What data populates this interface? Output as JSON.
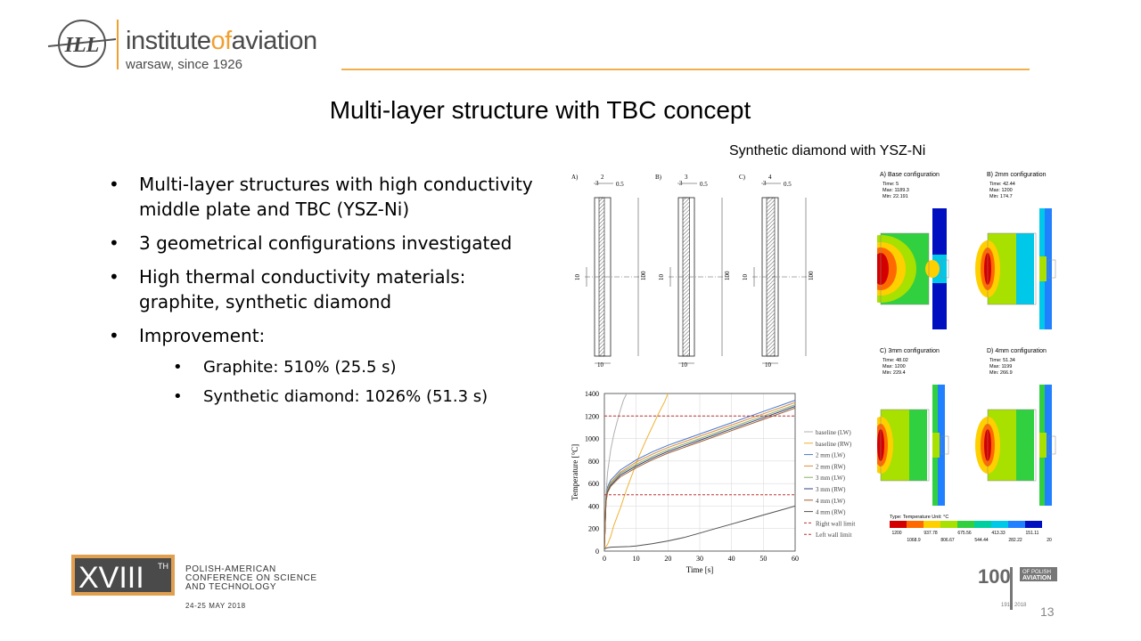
{
  "header": {
    "logo_initials": "ILL",
    "logo_name_a": "institute",
    "logo_name_b": "of",
    "logo_name_c": "aviation",
    "logo_sub": "warsaw, since 1926"
  },
  "title": "Multi-layer structure with TBC concept",
  "figure_caption": "Synthetic diamond with YSZ-Ni",
  "bullets": [
    {
      "text": "Multi-layer structures with high conductivity middle plate and TBC (YSZ-Ni)"
    },
    {
      "text": "3 geometrical configurations investigated"
    },
    {
      "text": "High thermal conductivity materials: graphite, synthetic diamond"
    },
    {
      "text": "Improvement:"
    }
  ],
  "sub_bullets": [
    {
      "text": "Graphite: 510% (25.5 s)"
    },
    {
      "text": "Synthetic diamond: 1026% (51.3 s)"
    }
  ],
  "drawings": {
    "panels": [
      {
        "label": "A)",
        "dim_top": "2",
        "dim_side": "3",
        "dim_thin": "0.5",
        "dim_h": "100",
        "dim_mid": "10",
        "dim_w": "10"
      },
      {
        "label": "B)",
        "dim_top": "3",
        "dim_side": "3",
        "dim_thin": "0.5",
        "dim_h": "100",
        "dim_mid": "10",
        "dim_w": "10"
      },
      {
        "label": "C)",
        "dim_top": "4",
        "dim_side": "3",
        "dim_thin": "0.5",
        "dim_h": "100",
        "dim_mid": "10",
        "dim_w": "10"
      }
    ]
  },
  "fem": {
    "panels": [
      {
        "title": "A) Base configuration",
        "time": "Time: 5",
        "max": "Max: 1189.3",
        "min": "Min: 22.191"
      },
      {
        "title": "B) 2mm configuration",
        "time": "Time: 42.44",
        "max": "Max: 1200",
        "min": "Min: 174.7"
      },
      {
        "title": "C) 3mm configuration",
        "time": "Time: 48.02",
        "max": "Max: 1200",
        "min": "Min: 229.4"
      },
      {
        "title": "D) 4mm configuration",
        "time": "Time: 51.34",
        "max": "Max: 1199",
        "min": "Min: 266.9"
      }
    ],
    "legend_title": "Type: Temperature   Unit: °C",
    "scale_top": [
      "1200",
      "937.78",
      "675.56",
      "413.33",
      "151.11"
    ],
    "scale_bottom": [
      "1068.9",
      "806.67",
      "544.44",
      "282.22",
      "20"
    ],
    "scale_colors": [
      "#d40000",
      "#ff6a00",
      "#ffd000",
      "#a8e000",
      "#30d040",
      "#00d0a0",
      "#00c8e8",
      "#2080ff",
      "#0010c0"
    ]
  },
  "chart_data": {
    "type": "line",
    "xlabel": "Time [s]",
    "ylabel": "Temperature [°C]",
    "xlim": [
      0,
      60
    ],
    "ylim": [
      0,
      1400
    ],
    "xticks": [
      0,
      10,
      20,
      30,
      40,
      50,
      60
    ],
    "yticks": [
      0,
      200,
      400,
      600,
      800,
      1000,
      1200,
      1400
    ],
    "grid": true,
    "legend_position": "right",
    "series": [
      {
        "name": "baseline (LW)",
        "color": "#b0b0b0",
        "dash": "",
        "x": [
          0,
          0.5,
          1,
          2,
          3,
          4,
          5,
          6,
          7
        ],
        "y": [
          20,
          500,
          700,
          900,
          1040,
          1150,
          1250,
          1340,
          1400
        ]
      },
      {
        "name": "baseline (RW)",
        "color": "#f0b030",
        "dash": "",
        "x": [
          0,
          1,
          2,
          3,
          5,
          7,
          9,
          11,
          13,
          15,
          17,
          19,
          20
        ],
        "y": [
          20,
          60,
          130,
          230,
          380,
          550,
          700,
          850,
          980,
          1100,
          1220,
          1330,
          1400
        ]
      },
      {
        "name": "2 mm (LW)",
        "color": "#4a78c8",
        "dash": "",
        "x": [
          0,
          0.5,
          1,
          2,
          3,
          5,
          10,
          15,
          20,
          30,
          40,
          50,
          60
        ],
        "y": [
          20,
          480,
          570,
          630,
          660,
          720,
          810,
          880,
          940,
          1040,
          1140,
          1240,
          1340
        ]
      },
      {
        "name": "2 mm (RW)",
        "color": "#e08a40",
        "dash": "",
        "x": [
          0,
          0.5,
          1,
          2,
          3,
          5,
          10,
          15,
          20,
          30,
          40,
          50,
          60
        ],
        "y": [
          20,
          460,
          550,
          610,
          640,
          700,
          790,
          860,
          920,
          1020,
          1120,
          1220,
          1320
        ]
      },
      {
        "name": "3 mm (LW)",
        "color": "#8ab060",
        "dash": "",
        "x": [
          0,
          0.5,
          1,
          2,
          3,
          5,
          10,
          15,
          20,
          30,
          40,
          50,
          60
        ],
        "y": [
          20,
          460,
          545,
          600,
          630,
          690,
          770,
          840,
          900,
          1000,
          1100,
          1200,
          1300
        ]
      },
      {
        "name": "3 mm (RW)",
        "color": "#304080",
        "dash": "",
        "x": [
          0,
          0.5,
          1,
          2,
          3,
          5,
          10,
          15,
          20,
          30,
          40,
          50,
          60
        ],
        "y": [
          20,
          440,
          530,
          585,
          615,
          675,
          755,
          825,
          885,
          985,
          1085,
          1185,
          1285
        ]
      },
      {
        "name": "4 mm (LW)",
        "color": "#a06030",
        "dash": "",
        "x": [
          0,
          0.5,
          1,
          2,
          3,
          5,
          10,
          15,
          20,
          30,
          40,
          50,
          60
        ],
        "y": [
          20,
          440,
          520,
          575,
          605,
          660,
          740,
          810,
          870,
          970,
          1070,
          1170,
          1270
        ]
      },
      {
        "name": "4 mm (RW)",
        "color": "#505050",
        "dash": "",
        "x": [
          0,
          1,
          2,
          5,
          8,
          10,
          15,
          20,
          25,
          30,
          35,
          40,
          45,
          50,
          55,
          60
        ],
        "y": [
          20,
          30,
          35,
          38,
          40,
          45,
          65,
          90,
          120,
          160,
          200,
          240,
          280,
          320,
          360,
          400
        ]
      },
      {
        "name": "Right wall limit",
        "color": "#c03030",
        "dash": "3,2",
        "x": [
          0,
          60
        ],
        "y": [
          1200,
          1200
        ]
      },
      {
        "name": "Left wall limit",
        "color": "#c03030",
        "dash": "3,2",
        "x": [
          0,
          60
        ],
        "y": [
          500,
          500
        ]
      }
    ]
  },
  "footer": {
    "edition": "XVIII",
    "edition_sup": "TH",
    "conf_line1": "POLISH-AMERICAN",
    "conf_line2": "CONFERENCE ON SCIENCE",
    "conf_line3": "AND TECHNOLOGY",
    "conf_date": "24-25 MAY 2018",
    "hundred": "100",
    "hundred_sub1": "OF POLISH",
    "hundred_sub2": "AVIATION",
    "hundred_years": "1918 2018",
    "page_number": "13"
  }
}
